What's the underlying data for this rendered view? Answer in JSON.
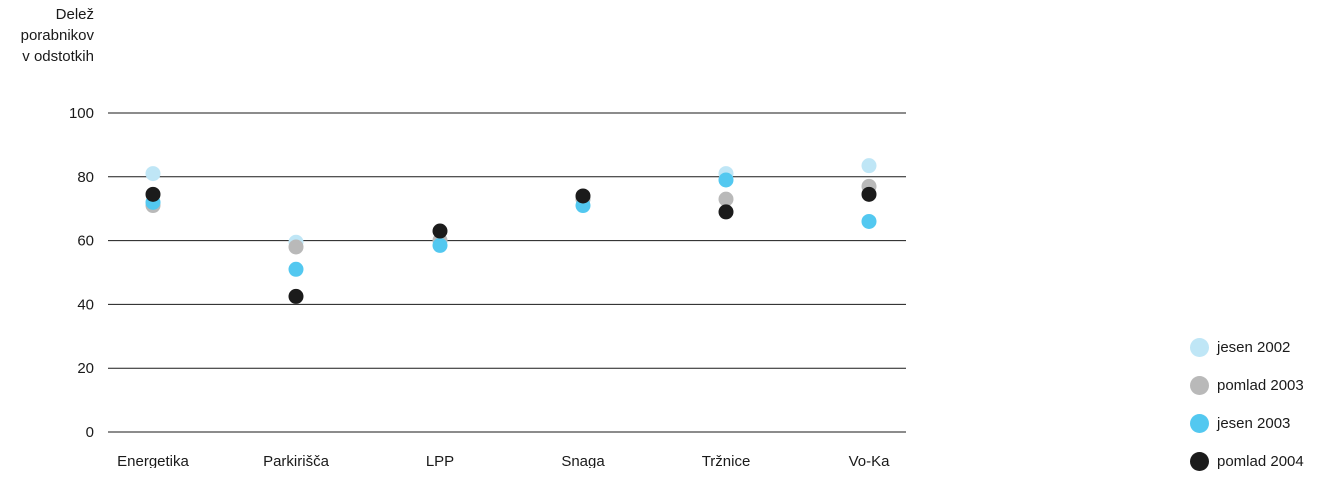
{
  "chart_data": {
    "type": "scatter",
    "ylabel": [
      "Delež",
      "porabnikov",
      "v odstotkih"
    ],
    "ylim": [
      0,
      100
    ],
    "yticks": [
      0,
      20,
      40,
      60,
      80,
      100
    ],
    "categories": [
      "Energetika",
      "Parkirišča",
      "LPP",
      "Snaga",
      "Tržnice",
      "Vo-Ka"
    ],
    "legend_position": "bottom-right",
    "series": [
      {
        "name": "jesen 2002",
        "color": "#bfe6f6",
        "values": [
          81,
          59.5,
          60,
          73,
          81,
          83.5
        ]
      },
      {
        "name": "pomlad 2003",
        "color": "#b9b9b9",
        "values": [
          71,
          58,
          60,
          73,
          73,
          77
        ]
      },
      {
        "name": "jesen 2003",
        "color": "#53c8f0",
        "values": [
          72,
          51,
          58.5,
          71,
          79,
          66
        ]
      },
      {
        "name": "pomlad 2004",
        "color": "#1b1b1b",
        "values": [
          74.5,
          42.5,
          63,
          74,
          69,
          74.5
        ]
      }
    ]
  }
}
